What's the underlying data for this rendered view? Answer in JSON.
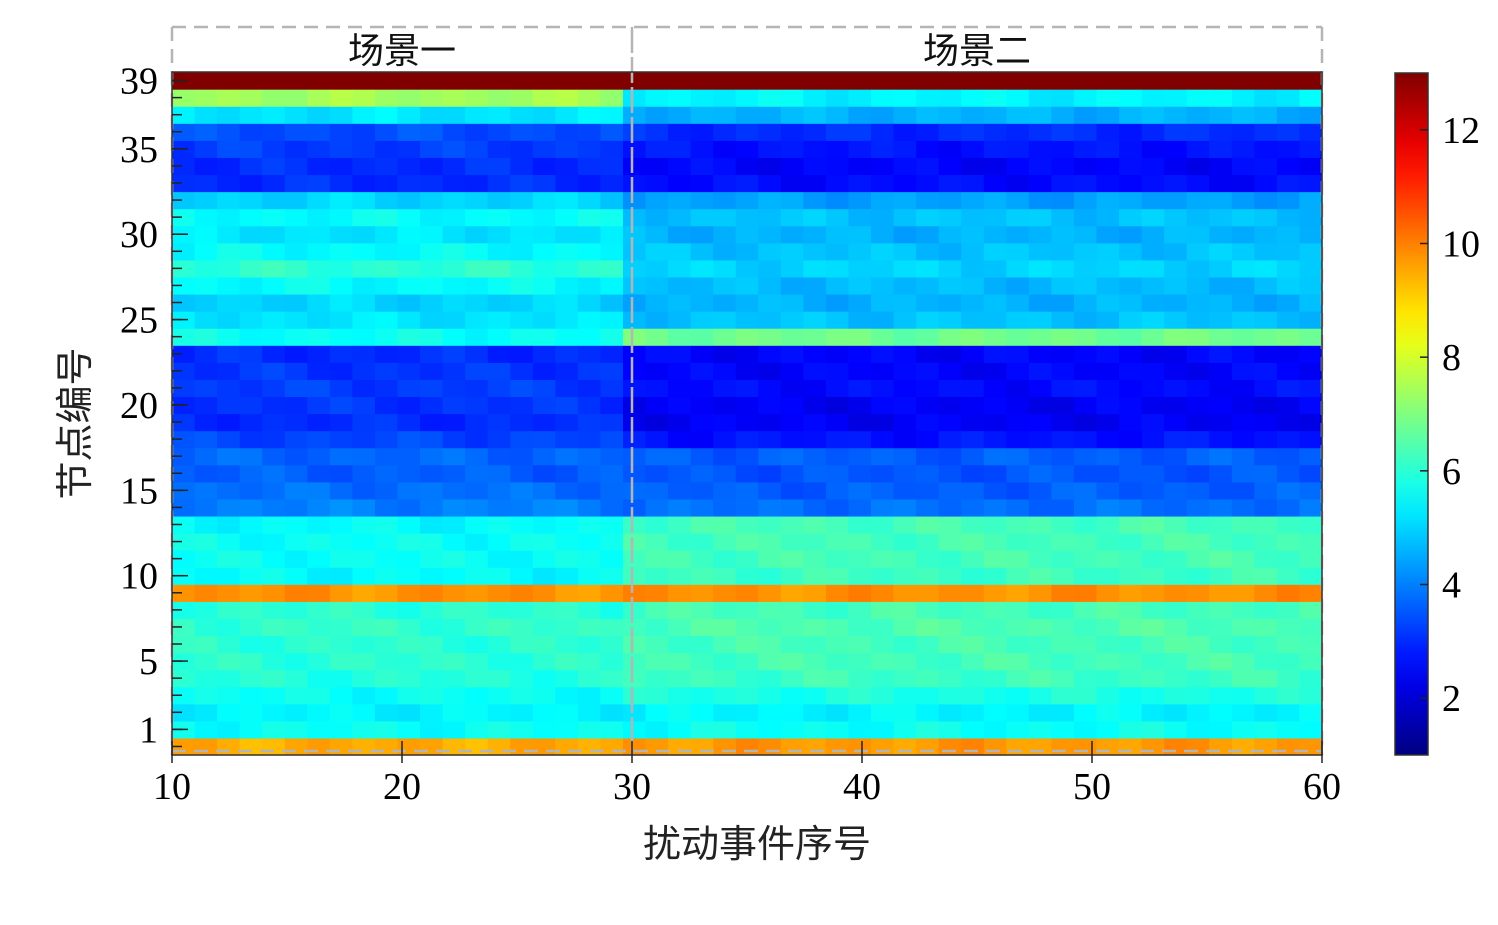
{
  "chart_data": {
    "type": "heatmap",
    "title": "",
    "xlabel": "扰动事件序号",
    "ylabel": "节点编号",
    "xlim": [
      10,
      60
    ],
    "ylim": [
      1,
      39
    ],
    "x_ticks": [
      "10",
      "20",
      "30",
      "40",
      "50",
      "60"
    ],
    "y_ticks": [
      "1",
      "5",
      "10",
      "15",
      "20",
      "25",
      "30",
      "35",
      "39"
    ],
    "x_events": [
      10,
      60
    ],
    "scenes": [
      {
        "label": "场景一",
        "x_start": 10,
        "x_end": 30
      },
      {
        "label": "场景二",
        "x_start": 30,
        "x_end": 60
      }
    ],
    "colorbar": {
      "min": 1,
      "max": 13,
      "colormap": "jet",
      "ticks": [
        "2",
        "4",
        "6",
        "8",
        "10",
        "12"
      ]
    },
    "node_values": {
      "scene_1": [
        9.5,
        5.6,
        5.4,
        5.6,
        5.9,
        6.0,
        6.0,
        6.1,
        6.0,
        9.8,
        5.5,
        5.6,
        5.6,
        5.5,
        4.0,
        3.8,
        3.6,
        3.7,
        3.3,
        3.0,
        3.1,
        3.2,
        3.1,
        3.0,
        5.6,
        5.2,
        5.0,
        5.5,
        6.0,
        5.5,
        5.2,
        5.5,
        5.0,
        3.0,
        3.0,
        3.2,
        3.4,
        5.2,
        7.4,
        13.0
      ],
      "scene_2": [
        9.7,
        5.6,
        5.4,
        5.8,
        6.2,
        6.3,
        6.3,
        6.4,
        6.3,
        9.8,
        6.2,
        6.3,
        6.3,
        6.3,
        3.8,
        3.6,
        3.5,
        3.6,
        2.7,
        2.4,
        2.4,
        2.6,
        2.5,
        2.5,
        6.8,
        4.8,
        4.6,
        4.7,
        5.0,
        4.8,
        4.6,
        4.8,
        4.4,
        2.6,
        2.5,
        2.7,
        3.0,
        4.6,
        5.4,
        13.0
      ]
    }
  }
}
